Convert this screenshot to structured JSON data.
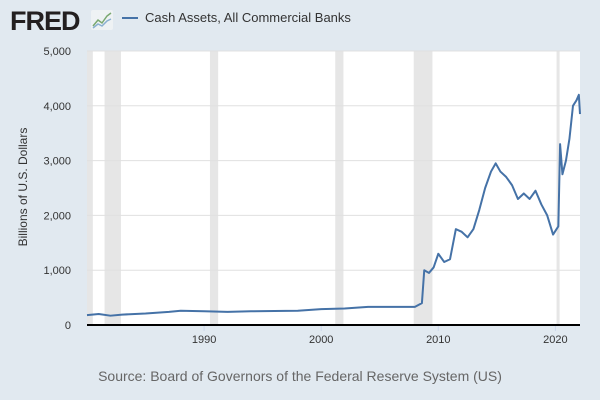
{
  "header": {
    "logo": "FRED",
    "logo_icon": "line-chart-icon"
  },
  "source": "Source: Board of Governors of the Federal Reserve System (US)",
  "chart_data": {
    "type": "line",
    "title": "",
    "legend": [
      "Cash Assets, All Commercial Banks"
    ],
    "legend_placement": "top-left",
    "ylabel": "Billions of U.S. Dollars",
    "xlabel": "",
    "xlim": [
      1980.0,
      2022.1
    ],
    "ylim": [
      0,
      5000
    ],
    "grid": true,
    "yticks": [
      0,
      1000,
      2000,
      3000,
      4000,
      5000
    ],
    "ytick_labels": [
      "0",
      "1,000",
      "2,000",
      "3,000",
      "4,000",
      "5,000"
    ],
    "xticks": [
      1990,
      2000,
      2010,
      2020
    ],
    "xtick_labels": [
      "1990",
      "2000",
      "2010",
      "2020"
    ],
    "line_color": "#4572a7",
    "recession_color": "#e6e6e6",
    "recessions": [
      [
        1980.0,
        1980.5
      ],
      [
        1981.5,
        1982.9
      ],
      [
        1990.5,
        1991.2
      ],
      [
        2001.2,
        2001.9
      ],
      [
        2007.9,
        2009.5
      ],
      [
        2020.1,
        2020.3
      ]
    ],
    "series": [
      {
        "name": "Cash Assets, All Commercial Banks",
        "x": [
          1980,
          1981,
          1982,
          1983,
          1985,
          1987,
          1988,
          1990,
          1992,
          1994,
          1996,
          1998,
          2000,
          2002,
          2004,
          2006,
          2008,
          2008.6,
          2008.8,
          2009.2,
          2009.6,
          2010,
          2010.5,
          2011,
          2011.5,
          2012,
          2012.5,
          2013,
          2013.5,
          2014,
          2014.5,
          2014.9,
          2015.3,
          2015.8,
          2016.3,
          2016.8,
          2017.3,
          2017.8,
          2018.3,
          2018.8,
          2019.3,
          2019.8,
          2020.1,
          2020.25,
          2020.4,
          2020.6,
          2020.9,
          2021.2,
          2021.5,
          2021.8,
          2022.0,
          2022.1
        ],
        "values": [
          180,
          200,
          170,
          190,
          210,
          240,
          260,
          250,
          240,
          250,
          255,
          260,
          290,
          300,
          330,
          330,
          330,
          400,
          1000,
          950,
          1050,
          1300,
          1150,
          1200,
          1750,
          1700,
          1600,
          1750,
          2100,
          2500,
          2800,
          2950,
          2800,
          2700,
          2550,
          2300,
          2400,
          2300,
          2450,
          2200,
          2000,
          1650,
          1750,
          1800,
          3300,
          2750,
          3000,
          3400,
          4000,
          4100,
          4200,
          3850
        ]
      }
    ]
  }
}
